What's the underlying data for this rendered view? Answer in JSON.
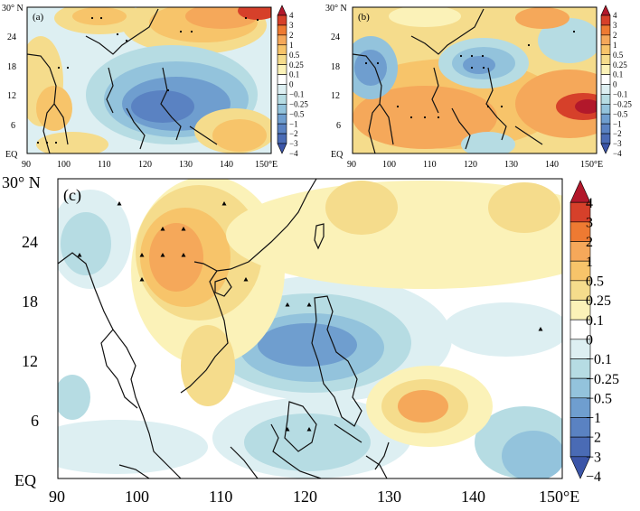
{
  "panels": {
    "a": {
      "label": "(a)",
      "lat_ticks": [
        "30° N",
        "24",
        "18",
        "12",
        "6",
        "EQ"
      ],
      "lon_ticks": [
        "90",
        "100",
        "110",
        "120",
        "130",
        "140",
        "150°E"
      ]
    },
    "b": {
      "label": "(b)",
      "lat_ticks": [
        "30° N",
        "24",
        "18",
        "12",
        "6",
        "EQ"
      ],
      "lon_ticks": [
        "90",
        "100",
        "110",
        "120",
        "130",
        "140",
        "150°E"
      ]
    },
    "c": {
      "label": "(c)",
      "lat_ticks": [
        "30° N",
        "24",
        "18",
        "12",
        "6",
        "EQ"
      ],
      "lon_ticks": [
        "90",
        "100",
        "110",
        "120",
        "130",
        "140",
        "150°E"
      ]
    }
  },
  "colorbar": {
    "levels": [
      "4",
      "3",
      "2",
      "1",
      "0.5",
      "0.25",
      "0.1",
      "0",
      "−0.1",
      "−0.25",
      "−0.5",
      "−1",
      "−2",
      "−3",
      "−4"
    ],
    "colors": [
      "#b2182b",
      "#d6402a",
      "#ee7a32",
      "#f5a85a",
      "#f7c46a",
      "#f5dc8c",
      "#fbf2b8",
      "#ffffff",
      "#ddeff2",
      "#b6dce3",
      "#93c3dc",
      "#6f9ecf",
      "#5a82c2",
      "#4a6bb5",
      "#3b55a8"
    ]
  },
  "palette": {
    "land_line": "#111111",
    "dot": "#000000"
  }
}
